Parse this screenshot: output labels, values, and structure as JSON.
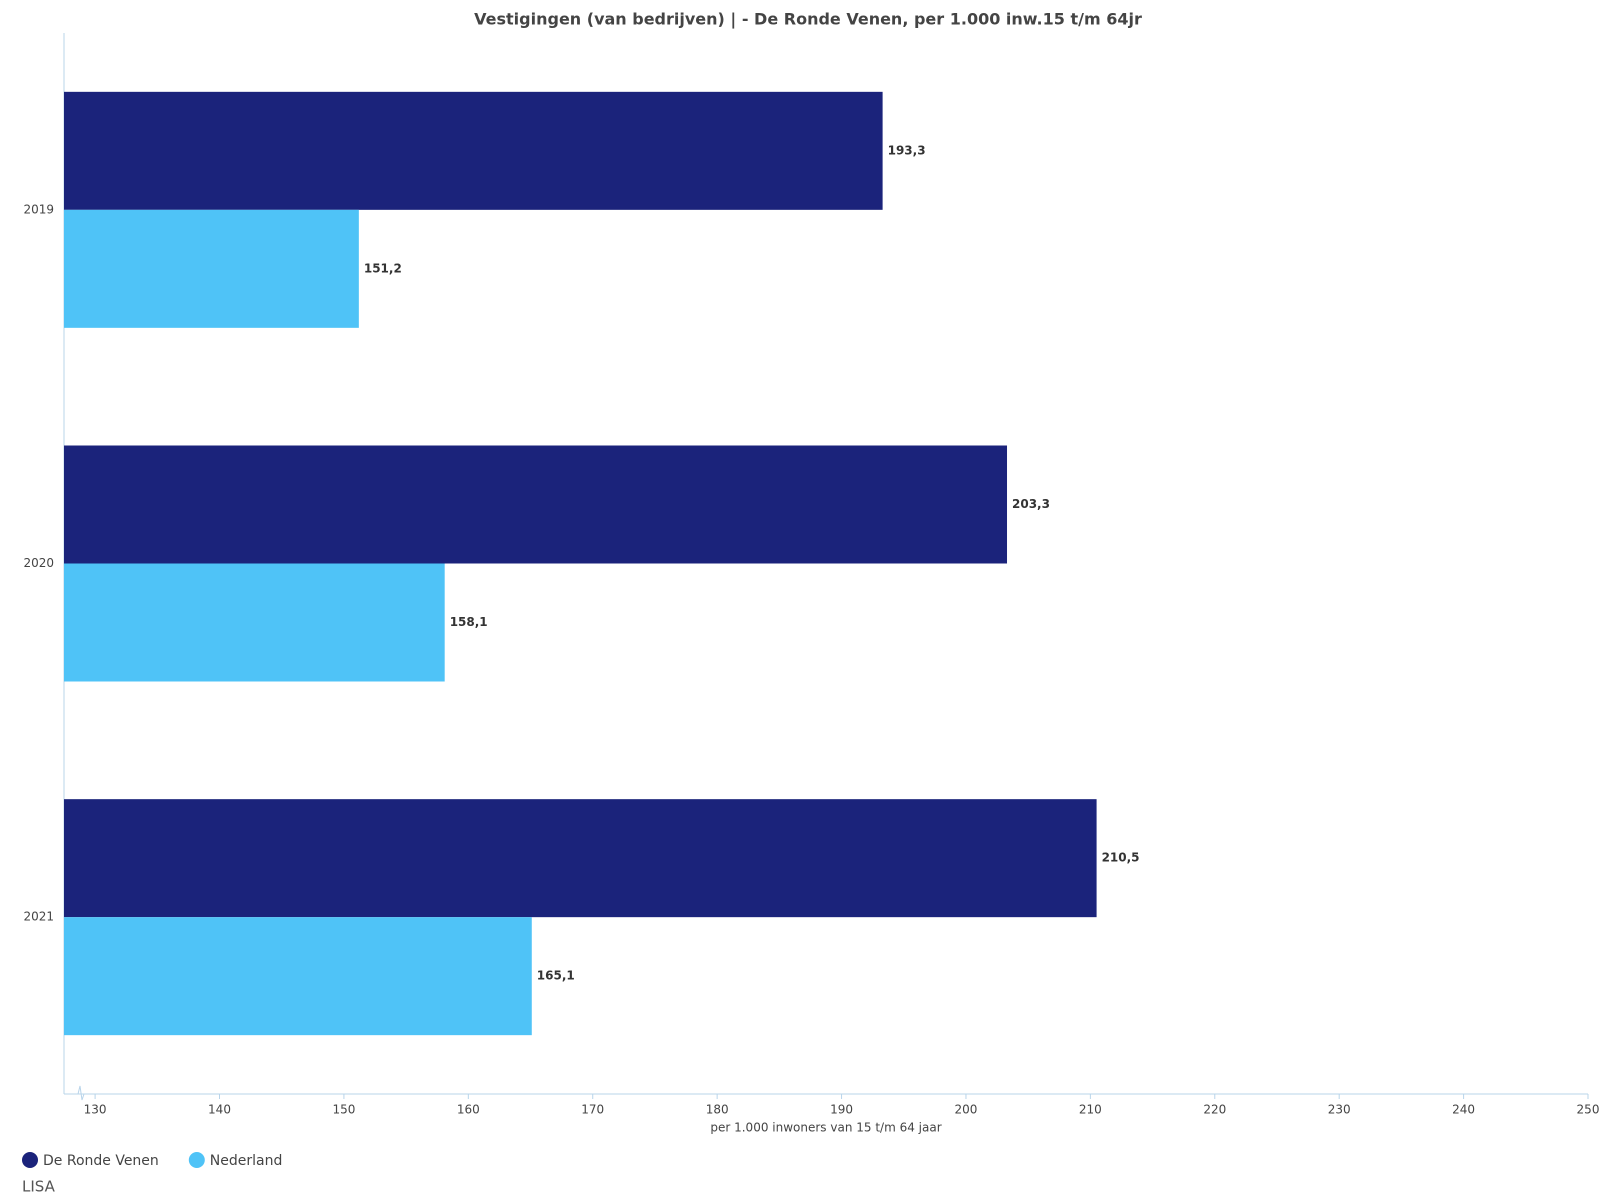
{
  "chart_data": {
    "type": "hbar",
    "title": "Vestigingen (van bedrijven) | - De Ronde Venen, per 1.000 inw.15 t/m 64jr",
    "x_label": "per 1.000 inwoners van 15 t/m 64 jaar",
    "source": "LISA",
    "categories": [
      "2019",
      "2020",
      "2021"
    ],
    "series": [
      {
        "name": "De Ronde Venen",
        "color": "#1b237b",
        "values": [
          193.3,
          203.3,
          210.5
        ],
        "value_labels": [
          "193,3",
          "203,3",
          "210,5"
        ]
      },
      {
        "name": "Nederland",
        "color": "#4fc3f7",
        "values": [
          151.2,
          158.1,
          165.1
        ],
        "value_labels": [
          "151,2",
          "158,1",
          "165,1"
        ]
      }
    ],
    "xlim": [
      127.5,
      250
    ],
    "xticks": [
      130,
      140,
      150,
      160,
      170,
      180,
      190,
      200,
      210,
      220,
      230,
      240,
      250
    ],
    "legend": "bottom-left"
  }
}
